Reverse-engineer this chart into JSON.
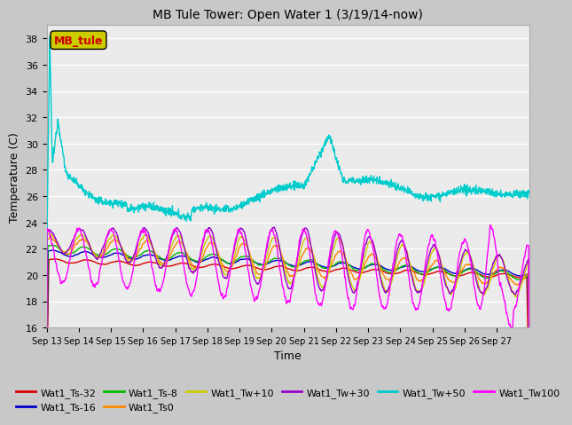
{
  "title": "MB Tule Tower: Open Water 1 (3/19/14-now)",
  "xlabel": "Time",
  "ylabel": "Temperature (C)",
  "ylim": [
    16,
    39
  ],
  "yticks": [
    16,
    18,
    20,
    22,
    24,
    26,
    28,
    30,
    32,
    34,
    36,
    38
  ],
  "bg_color": "#ebebeb",
  "grid_color": "#ffffff",
  "legend_box_text": "MB_tule",
  "legend_box_facecolor": "#cccc00",
  "legend_box_textcolor": "#cc0000",
  "date_start": 13,
  "date_end": 28,
  "series": [
    {
      "label": "Wat1_Ts-32",
      "color": "#dd0000"
    },
    {
      "label": "Wat1_Ts-16",
      "color": "#0000cc"
    },
    {
      "label": "Wat1_Ts-8",
      "color": "#00bb00"
    },
    {
      "label": "Wat1_Ts0",
      "color": "#ff8800"
    },
    {
      "label": "Wat1_Tw+10",
      "color": "#cccc00"
    },
    {
      "label": "Wat1_Tw+30",
      "color": "#9900cc"
    },
    {
      "label": "Wat1_Tw+50",
      "color": "#00cccc"
    },
    {
      "label": "Wat1_Tw100",
      "color": "#ff00ff"
    }
  ]
}
